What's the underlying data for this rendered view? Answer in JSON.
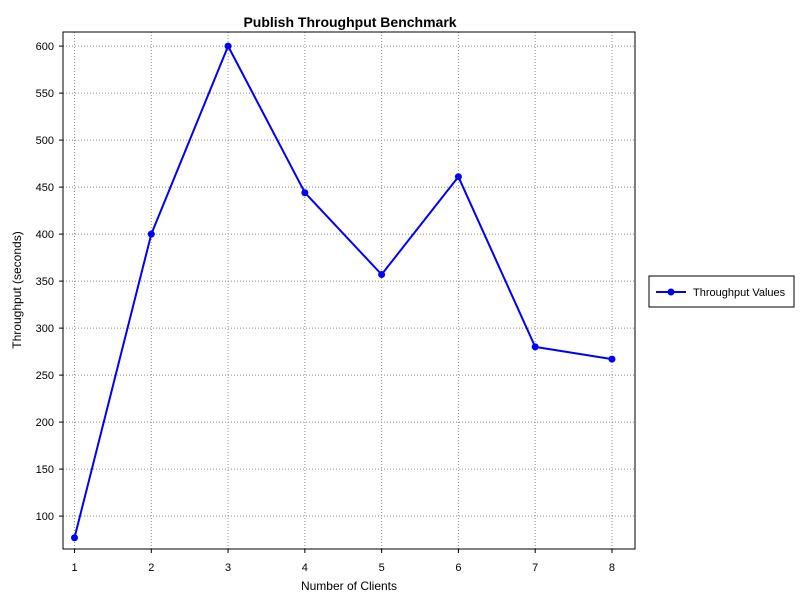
{
  "chart_data": {
    "type": "line",
    "title": "Publish Throughput Benchmark",
    "xlabel": "Number of Clients",
    "ylabel": "Throughput (seconds)",
    "x": [
      1,
      2,
      3,
      4,
      5,
      6,
      7,
      8
    ],
    "xlim": [
      0.85,
      8.3
    ],
    "ylim": [
      65,
      615
    ],
    "x_ticks": [
      1,
      2,
      3,
      4,
      5,
      6,
      7,
      8
    ],
    "y_ticks": [
      100,
      150,
      200,
      250,
      300,
      350,
      400,
      450,
      500,
      550,
      600
    ],
    "grid": true,
    "legend_position": "outside-right",
    "series": [
      {
        "name": "Throughput Values",
        "color": "#0000ff",
        "marker": "circle",
        "values": [
          77,
          400,
          600,
          444,
          357,
          461,
          280,
          267
        ]
      }
    ]
  }
}
